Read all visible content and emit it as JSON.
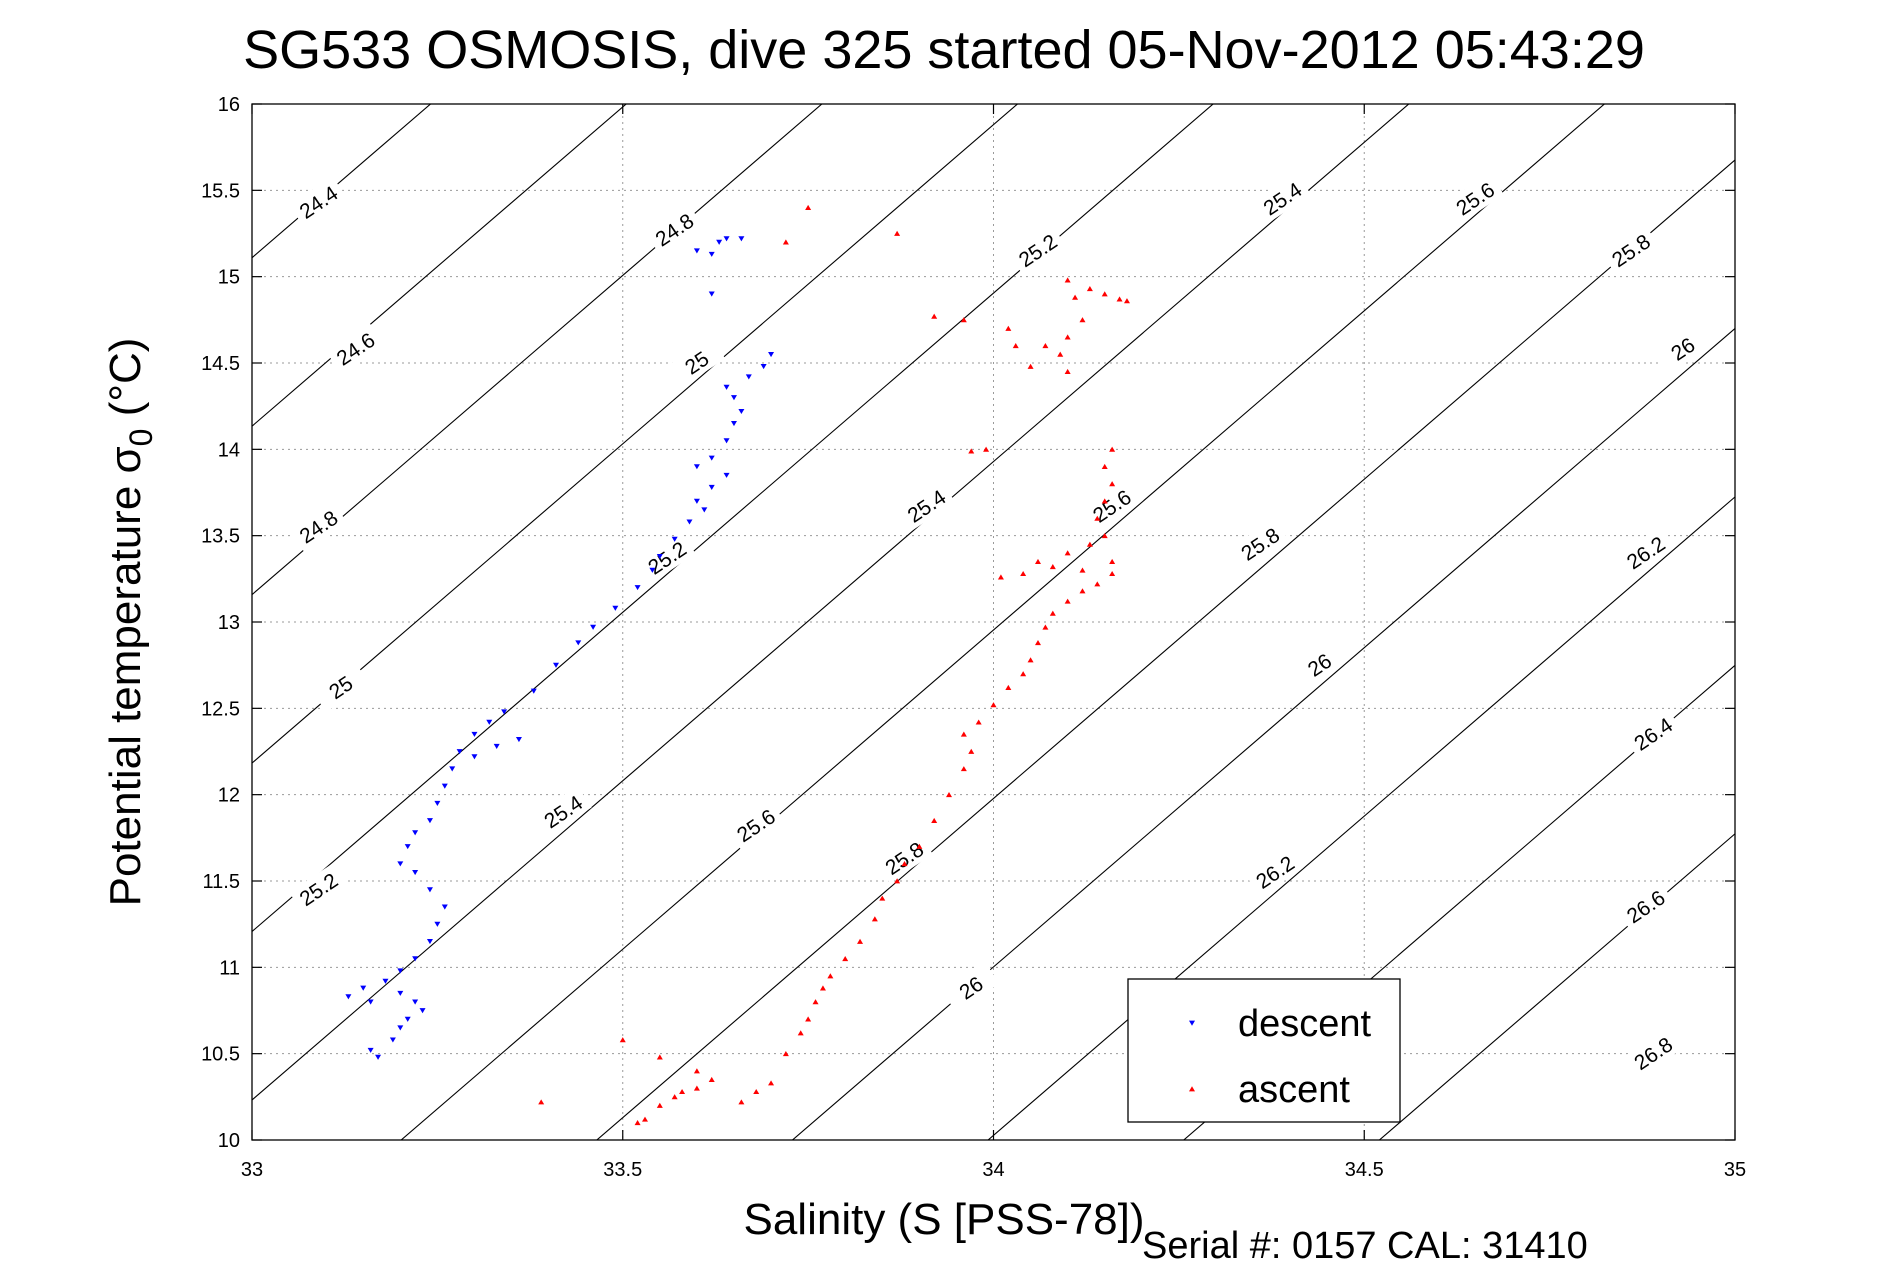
{
  "chart_data": {
    "type": "scatter",
    "title": "SG533 OSMOSIS, dive 325 started 05-Nov-2012 05:43:29",
    "xlabel": "Salinity (S [PSS-78])",
    "ylabel": "Potential temperature σ",
    "ylabel_subscript": "0",
    "ylabel_unit": " (°C)",
    "footer": "Serial #: 0157  CAL: 31410",
    "xlim": [
      33,
      35
    ],
    "ylim": [
      10,
      16
    ],
    "x_ticks": [
      "33",
      "33.5",
      "34",
      "34.5",
      "35"
    ],
    "y_ticks": [
      "10",
      "10.5",
      "11",
      "11.5",
      "12",
      "12.5",
      "13",
      "13.5",
      "14",
      "14.5",
      "15",
      "15.5",
      "16"
    ],
    "grid": true,
    "legend": "bottom-center",
    "contours": {
      "levels": [
        24.4,
        24.6,
        24.8,
        25,
        25.2,
        25.4,
        25.6,
        25.8,
        26,
        26.2,
        26.4,
        26.6,
        26.8
      ],
      "labels": [
        {
          "text": "24.4",
          "x": 33.09,
          "y": 15.43
        },
        {
          "text": "24.6",
          "x": 33.14,
          "y": 14.58
        },
        {
          "text": "24.8",
          "x": 33.09,
          "y": 13.55
        },
        {
          "text": "25",
          "x": 33.12,
          "y": 12.62
        },
        {
          "text": "25.2",
          "x": 33.09,
          "y": 11.45
        },
        {
          "text": "24.8",
          "x": 33.57,
          "y": 15.27
        },
        {
          "text": "25",
          "x": 33.6,
          "y": 14.5
        },
        {
          "text": "25.2",
          "x": 33.56,
          "y": 13.37
        },
        {
          "text": "25.4",
          "x": 33.42,
          "y": 11.9
        },
        {
          "text": "25.6",
          "x": 33.68,
          "y": 11.82
        },
        {
          "text": "25.4",
          "x": 33.91,
          "y": 13.67
        },
        {
          "text": "25.2",
          "x": 34.06,
          "y": 15.15
        },
        {
          "text": "25.8",
          "x": 33.88,
          "y": 11.63
        },
        {
          "text": "26",
          "x": 33.97,
          "y": 10.88
        },
        {
          "text": "25.6",
          "x": 34.16,
          "y": 13.67
        },
        {
          "text": "25.4",
          "x": 34.39,
          "y": 15.45
        },
        {
          "text": "25.6",
          "x": 34.65,
          "y": 15.45
        },
        {
          "text": "25.8",
          "x": 34.36,
          "y": 13.45
        },
        {
          "text": "26",
          "x": 34.44,
          "y": 12.75
        },
        {
          "text": "26.2",
          "x": 34.38,
          "y": 11.55
        },
        {
          "text": "25.8",
          "x": 34.86,
          "y": 15.15
        },
        {
          "text": "26",
          "x": 34.93,
          "y": 14.58
        },
        {
          "text": "26.2",
          "x": 34.88,
          "y": 13.4
        },
        {
          "text": "26.4",
          "x": 34.89,
          "y": 12.35
        },
        {
          "text": "26.6",
          "x": 34.88,
          "y": 11.35
        },
        {
          "text": "26.8",
          "x": 34.89,
          "y": 10.5
        }
      ]
    },
    "series": [
      {
        "name": "descent",
        "color": "#0000ff",
        "marker": "triangle-down",
        "points": [
          [
            33.17,
            10.48
          ],
          [
            33.16,
            10.52
          ],
          [
            33.19,
            10.58
          ],
          [
            33.2,
            10.65
          ],
          [
            33.21,
            10.7
          ],
          [
            33.23,
            10.75
          ],
          [
            33.22,
            10.8
          ],
          [
            33.2,
            10.85
          ],
          [
            33.16,
            10.8
          ],
          [
            33.13,
            10.83
          ],
          [
            33.15,
            10.88
          ],
          [
            33.18,
            10.92
          ],
          [
            33.2,
            10.98
          ],
          [
            33.22,
            11.05
          ],
          [
            33.24,
            11.15
          ],
          [
            33.25,
            11.25
          ],
          [
            33.26,
            11.35
          ],
          [
            33.24,
            11.45
          ],
          [
            33.22,
            11.55
          ],
          [
            33.2,
            11.6
          ],
          [
            33.21,
            11.7
          ],
          [
            33.22,
            11.78
          ],
          [
            33.24,
            11.85
          ],
          [
            33.25,
            11.95
          ],
          [
            33.26,
            12.05
          ],
          [
            33.27,
            12.15
          ],
          [
            33.28,
            12.25
          ],
          [
            33.3,
            12.35
          ],
          [
            33.32,
            12.42
          ],
          [
            33.34,
            12.48
          ],
          [
            33.36,
            12.32
          ],
          [
            33.33,
            12.28
          ],
          [
            33.3,
            12.22
          ],
          [
            33.38,
            12.6
          ],
          [
            33.41,
            12.75
          ],
          [
            33.44,
            12.88
          ],
          [
            33.46,
            12.97
          ],
          [
            33.49,
            13.08
          ],
          [
            33.52,
            13.2
          ],
          [
            33.54,
            13.3
          ],
          [
            33.55,
            13.38
          ],
          [
            33.57,
            13.48
          ],
          [
            33.59,
            13.58
          ],
          [
            33.61,
            13.65
          ],
          [
            33.6,
            13.7
          ],
          [
            33.62,
            13.78
          ],
          [
            33.64,
            13.85
          ],
          [
            33.6,
            13.9
          ],
          [
            33.62,
            13.95
          ],
          [
            33.64,
            14.05
          ],
          [
            33.65,
            14.15
          ],
          [
            33.66,
            14.22
          ],
          [
            33.65,
            14.3
          ],
          [
            33.64,
            14.36
          ],
          [
            33.67,
            14.42
          ],
          [
            33.69,
            14.48
          ],
          [
            33.7,
            14.55
          ],
          [
            33.62,
            14.9
          ],
          [
            33.6,
            15.15
          ],
          [
            33.62,
            15.13
          ],
          [
            33.63,
            15.2
          ],
          [
            33.64,
            15.22
          ],
          [
            33.66,
            15.22
          ]
        ]
      },
      {
        "name": "ascent",
        "color": "#ff0000",
        "marker": "triangle-up",
        "points": [
          [
            33.52,
            10.1
          ],
          [
            33.53,
            10.12
          ],
          [
            33.55,
            10.2
          ],
          [
            33.58,
            10.28
          ],
          [
            33.6,
            10.3
          ],
          [
            33.62,
            10.35
          ],
          [
            33.6,
            10.4
          ],
          [
            33.55,
            10.48
          ],
          [
            33.57,
            10.25
          ],
          [
            33.66,
            10.22
          ],
          [
            33.68,
            10.28
          ],
          [
            33.7,
            10.33
          ],
          [
            33.72,
            10.5
          ],
          [
            33.74,
            10.62
          ],
          [
            33.75,
            10.7
          ],
          [
            33.76,
            10.8
          ],
          [
            33.77,
            10.88
          ],
          [
            33.78,
            10.95
          ],
          [
            33.8,
            11.05
          ],
          [
            33.82,
            11.15
          ],
          [
            33.84,
            11.28
          ],
          [
            33.85,
            11.4
          ],
          [
            33.87,
            11.5
          ],
          [
            33.88,
            11.6
          ],
          [
            33.9,
            11.7
          ],
          [
            33.92,
            11.85
          ],
          [
            33.94,
            12.0
          ],
          [
            33.96,
            12.15
          ],
          [
            33.97,
            12.25
          ],
          [
            33.96,
            12.35
          ],
          [
            33.98,
            12.42
          ],
          [
            34.0,
            12.52
          ],
          [
            34.02,
            12.62
          ],
          [
            34.04,
            12.7
          ],
          [
            34.05,
            12.78
          ],
          [
            34.06,
            12.88
          ],
          [
            34.07,
            12.97
          ],
          [
            34.08,
            13.05
          ],
          [
            34.1,
            13.12
          ],
          [
            34.12,
            13.18
          ],
          [
            34.14,
            13.22
          ],
          [
            34.16,
            13.28
          ],
          [
            34.12,
            13.3
          ],
          [
            34.08,
            13.32
          ],
          [
            34.04,
            13.28
          ],
          [
            34.01,
            13.26
          ],
          [
            34.06,
            13.35
          ],
          [
            34.1,
            13.4
          ],
          [
            34.13,
            13.45
          ],
          [
            34.15,
            13.5
          ],
          [
            34.14,
            13.6
          ],
          [
            34.15,
            13.7
          ],
          [
            34.16,
            13.8
          ],
          [
            34.15,
            13.9
          ],
          [
            34.16,
            14.0
          ],
          [
            33.99,
            14.0
          ],
          [
            33.97,
            13.99
          ],
          [
            34.1,
            14.45
          ],
          [
            34.09,
            14.55
          ],
          [
            34.07,
            14.6
          ],
          [
            34.05,
            14.48
          ],
          [
            34.03,
            14.6
          ],
          [
            34.02,
            14.7
          ],
          [
            34.1,
            14.65
          ],
          [
            34.12,
            14.75
          ],
          [
            34.11,
            14.88
          ],
          [
            34.1,
            14.98
          ],
          [
            34.13,
            14.93
          ],
          [
            34.15,
            14.9
          ],
          [
            34.17,
            14.87
          ],
          [
            34.18,
            14.86
          ],
          [
            34.16,
            13.35
          ],
          [
            33.96,
            14.75
          ],
          [
            33.92,
            14.77
          ],
          [
            33.87,
            15.25
          ],
          [
            33.75,
            15.4
          ],
          [
            33.72,
            15.2
          ],
          [
            33.5,
            10.58
          ],
          [
            33.39,
            10.22
          ]
        ]
      }
    ]
  }
}
